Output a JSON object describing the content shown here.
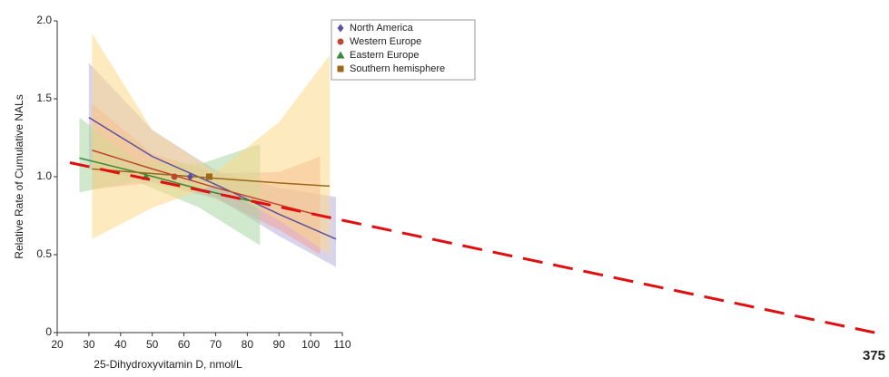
{
  "chart_data": {
    "type": "line",
    "xlabel": "25-Dihydroxyvitamin D, nmol/L",
    "ylabel": "Relative Rate of Cumulative NALs",
    "xlim": [
      20,
      110
    ],
    "xticks": [
      20,
      30,
      40,
      50,
      60,
      70,
      80,
      90,
      100,
      110
    ],
    "ylim": [
      0,
      2.0
    ],
    "yticks": [
      0,
      0.5,
      {
        "value": 1.0,
        "label": "1.0"
      },
      1.5,
      {
        "value": 2.0,
        "label": "2.0"
      }
    ],
    "legend": "top-right",
    "series": [
      {
        "name": "North America",
        "color": "#5b4fa0",
        "marker_shape": "diamond",
        "x": [
          30,
          50,
          70,
          90,
          108
        ],
        "values": [
          1.38,
          1.13,
          0.95,
          0.76,
          0.6
        ],
        "lower": [
          1.05,
          0.97,
          0.87,
          0.62,
          0.42
        ],
        "upper": [
          1.73,
          1.3,
          1.04,
          0.93,
          0.87
        ],
        "marker": {
          "x": 62,
          "y": 1.0
        }
      },
      {
        "name": "Western Europe",
        "color": "#c0462e",
        "marker_shape": "circle",
        "x": [
          31,
          50,
          70,
          90,
          103
        ],
        "values": [
          1.17,
          1.05,
          0.93,
          0.82,
          0.75
        ],
        "lower": [
          0.92,
          0.96,
          0.86,
          0.66,
          0.5
        ],
        "upper": [
          1.47,
          1.15,
          1.02,
          1.03,
          1.13
        ],
        "marker": {
          "x": 57,
          "y": 1.0
        }
      },
      {
        "name": "Eastern Europe",
        "color": "#3a8a3a",
        "marker_shape": "triangle",
        "x": [
          27,
          45,
          65,
          84
        ],
        "values": [
          1.12,
          1.03,
          0.92,
          0.83
        ],
        "lower": [
          0.9,
          0.97,
          0.8,
          0.56
        ],
        "upper": [
          1.38,
          1.1,
          1.08,
          1.21
        ],
        "marker": {
          "x": 48,
          "y": 1.0
        }
      },
      {
        "name": "Southern hemisphere",
        "color": "#9a6a1a",
        "marker_shape": "square",
        "x": [
          31,
          50,
          70,
          90,
          106
        ],
        "values": [
          1.05,
          1.02,
          0.99,
          0.96,
          0.94
        ],
        "lower": [
          0.6,
          0.8,
          0.95,
          0.72,
          0.5
        ],
        "upper": [
          1.92,
          1.3,
          1.03,
          1.35,
          1.78
        ],
        "marker": {
          "x": 68,
          "y": 1.0
        }
      }
    ],
    "band_colors": [
      "#b9aedc",
      "#f2a49a",
      "#a9d5a0",
      "#fbd98a"
    ],
    "annotation": {
      "label": "375",
      "color": "#e01010",
      "x": [
        24,
        278
      ],
      "y": [
        1.09,
        0
      ]
    }
  }
}
